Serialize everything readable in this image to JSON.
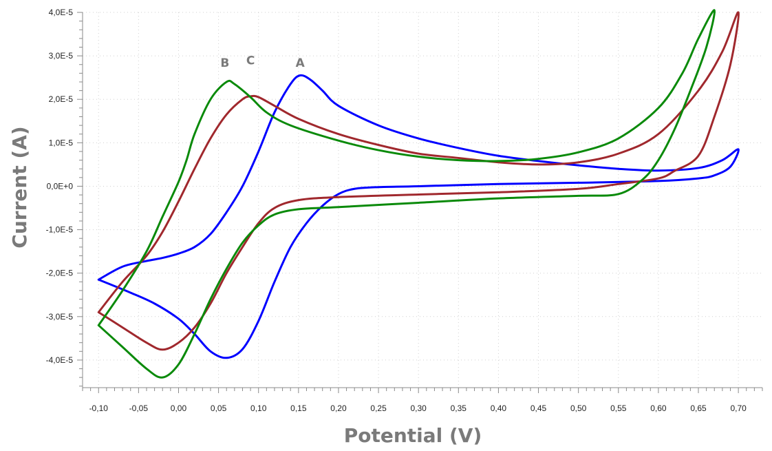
{
  "chart_data": {
    "type": "line",
    "title": "",
    "xlabel": "Potential (V)",
    "ylabel": "Current (A)",
    "xlim": [
      -0.12,
      0.73
    ],
    "ylim": [
      -4.635e-05,
      4e-05
    ],
    "x_ticks": [
      "-0,10",
      "-0,05",
      "0,00",
      "0,05",
      "0,10",
      "0,15",
      "0,20",
      "0,25",
      "0,30",
      "0,35",
      "0,40",
      "0,45",
      "0,50",
      "0,55",
      "0,60",
      "0,65",
      "0,70"
    ],
    "x_tick_values": [
      -0.1,
      -0.05,
      0.0,
      0.05,
      0.1,
      0.15,
      0.2,
      0.25,
      0.3,
      0.35,
      0.4,
      0.45,
      0.5,
      0.55,
      0.6,
      0.65,
      0.7
    ],
    "y_ticks": [
      "4,0E-5",
      "3,0E-5",
      "2,0E-5",
      "1,0E-5",
      "0,0E+0",
      "-1,0E-5",
      "-2,0E-5",
      "-3,0E-5",
      "-4,0E-5"
    ],
    "y_tick_values": [
      4e-05,
      3e-05,
      2e-05,
      1e-05,
      0,
      -1e-05,
      -2e-05,
      -3e-05,
      -4e-05
    ],
    "grid": true,
    "annotations": [
      {
        "text": "B",
        "x": 0.058,
        "y": 2.75e-05
      },
      {
        "text": "C",
        "x": 0.09,
        "y": 2.8e-05
      },
      {
        "text": "A",
        "x": 0.152,
        "y": 2.75e-05
      }
    ],
    "series": [
      {
        "color": "#0000ff",
        "points": [
          [
            -0.1,
            -2.15e-05
          ],
          [
            -0.07,
            -1.85e-05
          ],
          [
            -0.04,
            -1.72e-05
          ],
          [
            -0.02,
            -1.65e-05
          ],
          [
            0.0,
            -1.55e-05
          ],
          [
            0.02,
            -1.4e-05
          ],
          [
            0.04,
            -1.1e-05
          ],
          [
            0.06,
            -6e-06
          ],
          [
            0.08,
            0.0
          ],
          [
            0.1,
            8e-06
          ],
          [
            0.12,
            1.7e-05
          ],
          [
            0.14,
            2.35e-05
          ],
          [
            0.152,
            2.55e-05
          ],
          [
            0.165,
            2.45e-05
          ],
          [
            0.18,
            2.2e-05
          ],
          [
            0.2,
            1.85e-05
          ],
          [
            0.25,
            1.4e-05
          ],
          [
            0.3,
            1.1e-05
          ],
          [
            0.35,
            8.8e-06
          ],
          [
            0.4,
            7e-06
          ],
          [
            0.45,
            5.8e-06
          ],
          [
            0.5,
            4.8e-06
          ],
          [
            0.55,
            4e-06
          ],
          [
            0.6,
            3.6e-06
          ],
          [
            0.65,
            4.2e-06
          ],
          [
            0.68,
            6e-06
          ],
          [
            0.7,
            8.5e-06
          ],
          [
            0.69,
            4.5e-06
          ],
          [
            0.67,
            2.5e-06
          ],
          [
            0.65,
            1.8e-06
          ],
          [
            0.6,
            1.2e-06
          ],
          [
            0.5,
            8e-07
          ],
          [
            0.4,
            5e-07
          ],
          [
            0.3,
            0.0
          ],
          [
            0.25,
            -2e-07
          ],
          [
            0.22,
            -6e-07
          ],
          [
            0.2,
            -1.8e-06
          ],
          [
            0.18,
            -4.5e-06
          ],
          [
            0.16,
            -8.5e-06
          ],
          [
            0.14,
            -1.4e-05
          ],
          [
            0.12,
            -2.2e-05
          ],
          [
            0.1,
            -3.1e-05
          ],
          [
            0.08,
            -3.75e-05
          ],
          [
            0.06,
            -3.95e-05
          ],
          [
            0.04,
            -3.8e-05
          ],
          [
            0.02,
            -3.4e-05
          ],
          [
            0.0,
            -3.05e-05
          ],
          [
            -0.03,
            -2.7e-05
          ],
          [
            -0.06,
            -2.45e-05
          ],
          [
            -0.1,
            -2.15e-05
          ]
        ]
      },
      {
        "color": "#a0282d",
        "points": [
          [
            -0.1,
            -2.9e-05
          ],
          [
            -0.07,
            -2.2e-05
          ],
          [
            -0.04,
            -1.6e-05
          ],
          [
            -0.02,
            -1.05e-05
          ],
          [
            0.0,
            -3.5e-06
          ],
          [
            0.02,
            4e-06
          ],
          [
            0.04,
            1.1e-05
          ],
          [
            0.06,
            1.65e-05
          ],
          [
            0.08,
            2e-05
          ],
          [
            0.09,
            2.07e-05
          ],
          [
            0.1,
            2.05e-05
          ],
          [
            0.12,
            1.85e-05
          ],
          [
            0.15,
            1.55e-05
          ],
          [
            0.2,
            1.2e-05
          ],
          [
            0.25,
            9.5e-06
          ],
          [
            0.3,
            7.5e-06
          ],
          [
            0.35,
            6.5e-06
          ],
          [
            0.4,
            5.5e-06
          ],
          [
            0.45,
            5e-06
          ],
          [
            0.5,
            5.5e-06
          ],
          [
            0.55,
            7.5e-06
          ],
          [
            0.6,
            1.2e-05
          ],
          [
            0.65,
            2.2e-05
          ],
          [
            0.68,
            3.1e-05
          ],
          [
            0.7,
            4e-05
          ],
          [
            0.69,
            2.8e-05
          ],
          [
            0.67,
            1.6e-05
          ],
          [
            0.65,
            7e-06
          ],
          [
            0.62,
            3.5e-06
          ],
          [
            0.6,
            1.8e-06
          ],
          [
            0.55,
            5e-07
          ],
          [
            0.5,
            -6e-07
          ],
          [
            0.4,
            -1.4e-06
          ],
          [
            0.3,
            -1.9e-06
          ],
          [
            0.2,
            -2.5e-06
          ],
          [
            0.15,
            -3.2e-06
          ],
          [
            0.12,
            -5e-06
          ],
          [
            0.1,
            -8.5e-06
          ],
          [
            0.08,
            -1.4e-05
          ],
          [
            0.06,
            -2e-05
          ],
          [
            0.04,
            -2.7e-05
          ],
          [
            0.02,
            -3.25e-05
          ],
          [
            0.0,
            -3.6e-05
          ],
          [
            -0.02,
            -3.76e-05
          ],
          [
            -0.04,
            -3.6e-05
          ],
          [
            -0.07,
            -3.25e-05
          ],
          [
            -0.1,
            -2.9e-05
          ]
        ]
      },
      {
        "color": "#0a8a0a",
        "points": [
          [
            -0.1,
            -3.2e-05
          ],
          [
            -0.07,
            -2.4e-05
          ],
          [
            -0.04,
            -1.5e-05
          ],
          [
            -0.02,
            -7e-06
          ],
          [
            0.0,
            1e-06
          ],
          [
            0.01,
            6e-06
          ],
          [
            0.02,
            1.2e-05
          ],
          [
            0.04,
            2e-05
          ],
          [
            0.06,
            2.4e-05
          ],
          [
            0.07,
            2.35e-05
          ],
          [
            0.09,
            2.05e-05
          ],
          [
            0.11,
            1.7e-05
          ],
          [
            0.14,
            1.4e-05
          ],
          [
            0.2,
            1.05e-05
          ],
          [
            0.25,
            8.3e-06
          ],
          [
            0.3,
            6.8e-06
          ],
          [
            0.35,
            6e-06
          ],
          [
            0.4,
            5.8e-06
          ],
          [
            0.45,
            6.3e-06
          ],
          [
            0.5,
            7.8e-06
          ],
          [
            0.55,
            1.1e-05
          ],
          [
            0.6,
            1.8e-05
          ],
          [
            0.63,
            2.6e-05
          ],
          [
            0.65,
            3.4e-05
          ],
          [
            0.67,
            4.05e-05
          ],
          [
            0.66,
            3.2e-05
          ],
          [
            0.64,
            2.2e-05
          ],
          [
            0.62,
            1.3e-05
          ],
          [
            0.6,
            6e-06
          ],
          [
            0.58,
            1.5e-06
          ],
          [
            0.55,
            -1.8e-06
          ],
          [
            0.5,
            -2.2e-06
          ],
          [
            0.4,
            -2.8e-06
          ],
          [
            0.3,
            -3.8e-06
          ],
          [
            0.2,
            -4.8e-06
          ],
          [
            0.15,
            -5.3e-06
          ],
          [
            0.12,
            -6.5e-06
          ],
          [
            0.1,
            -9e-06
          ],
          [
            0.08,
            -1.3e-05
          ],
          [
            0.06,
            -1.9e-05
          ],
          [
            0.04,
            -2.6e-05
          ],
          [
            0.02,
            -3.4e-05
          ],
          [
            0.0,
            -4.1e-05
          ],
          [
            -0.02,
            -4.4e-05
          ],
          [
            -0.04,
            -4.2e-05
          ],
          [
            -0.07,
            -3.7e-05
          ],
          [
            -0.1,
            -3.2e-05
          ]
        ]
      }
    ]
  }
}
